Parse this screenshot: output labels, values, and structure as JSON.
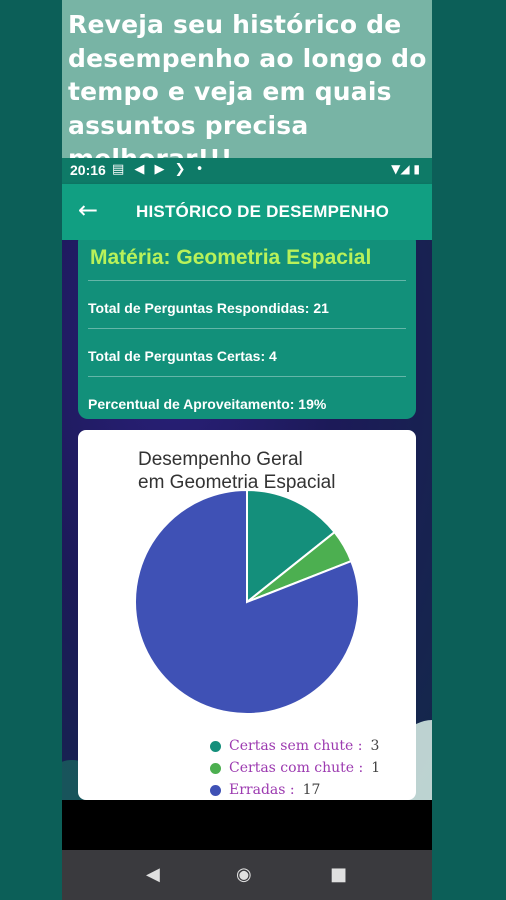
{
  "caption": {
    "text": "Reveja seu histórico de desempenho ao longo do tempo e veja em quais assuntos precisa melhorar!!!"
  },
  "status_bar": {
    "time": "20:16",
    "icons_left": "▤ ◀ ▶ ❯ •",
    "icons_right": "▼◢ ▮"
  },
  "app_bar": {
    "back_icon": "←",
    "title": "HISTÓRICO DE DESEMPENHO"
  },
  "info": {
    "subject": "Matéria: Geometria Espacial",
    "total_answered": "Total de Perguntas Respondidas: 21",
    "total_correct": "Total de Perguntas Certas: 4",
    "percentage": "Percentual de Aproveitamento: 19%"
  },
  "chart_title_line1": "Desempenho Geral",
  "chart_title_line2": "em Geometria Espacial",
  "chart_data": {
    "type": "pie",
    "title": "Desempenho Geral em Geometria Espacial",
    "categories": [
      "Certas sem chute :",
      "Certas com chute :",
      "Erradas :"
    ],
    "values": [
      3,
      1,
      17
    ],
    "colors": [
      "#148f7b",
      "#4caf50",
      "#3f51b5"
    ],
    "legend_position": "bottom-right"
  },
  "legend": [
    {
      "label": "Certas sem chute :",
      "value": "3",
      "color": "#148f7b"
    },
    {
      "label": "Certas com chute :",
      "value": "1",
      "color": "#4caf50"
    },
    {
      "label": "Erradas :",
      "value": "17",
      "color": "#3f51b5"
    }
  ],
  "nav": {
    "back": "◀",
    "home": "◉",
    "recents": "■"
  }
}
